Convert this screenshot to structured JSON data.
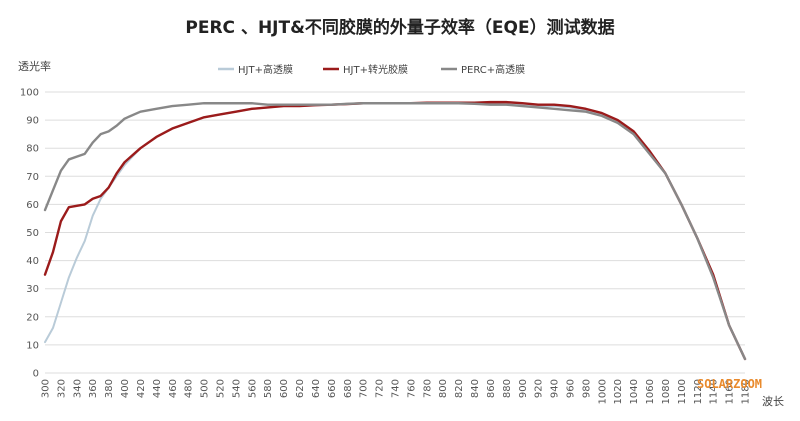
{
  "chart_data": {
    "type": "line",
    "title": "PERC 、HJT&不同胶膜的外量子效率（EQE）测试数据",
    "ylabel": "透光率",
    "xlabel": "波长",
    "ylim": [
      0,
      100
    ],
    "yticks": [
      0,
      10,
      20,
      30,
      40,
      50,
      60,
      70,
      80,
      90,
      100
    ],
    "xlim": [
      300,
      1180
    ],
    "xticks": [
      "300",
      "320",
      "340",
      "360",
      "380",
      "400",
      "420",
      "440",
      "460",
      "480",
      "500",
      "520",
      "540",
      "560",
      "580",
      "600",
      "620",
      "640",
      "660",
      "680",
      "700",
      "720",
      "740",
      "760",
      "780",
      "800",
      "820",
      "840",
      "860",
      "880",
      "900",
      "920",
      "940",
      "960",
      "980",
      "1000",
      "1020",
      "1040",
      "1060",
      "1080",
      "1100",
      "1120",
      "1140",
      "1160",
      "1180"
    ],
    "grid": true,
    "legend_position": "top-center",
    "series": [
      {
        "name": "HJT+高透膜",
        "color": "#b9cbd8",
        "x": [
          300,
          310,
          320,
          330,
          340,
          350,
          360,
          370,
          380,
          390,
          400,
          420,
          440,
          460,
          480,
          500,
          520,
          540,
          560,
          580,
          600,
          620,
          640,
          660,
          680,
          700,
          720,
          740,
          760,
          780,
          800,
          820,
          840,
          860,
          880,
          900,
          920,
          940,
          960,
          980,
          1000,
          1020,
          1040,
          1060,
          1080,
          1100,
          1120,
          1140,
          1160,
          1180
        ],
        "y": [
          11,
          16,
          25,
          34,
          41,
          47,
          56,
          62,
          66,
          70,
          74,
          80,
          84,
          87,
          89,
          91,
          92,
          93,
          94,
          94.5,
          95,
          95,
          95.3,
          95.5,
          95.7,
          96,
          96,
          96,
          96,
          96,
          96,
          96,
          96,
          96,
          95.5,
          95.5,
          95,
          95,
          94.5,
          93.5,
          92,
          90,
          86,
          79,
          71,
          60,
          48,
          35,
          17,
          5
        ]
      },
      {
        "name": "HJT+转光胶膜",
        "color": "#9b1b1b",
        "x": [
          300,
          310,
          320,
          330,
          340,
          350,
          360,
          370,
          380,
          390,
          400,
          420,
          440,
          460,
          480,
          500,
          520,
          540,
          560,
          580,
          600,
          620,
          640,
          660,
          680,
          700,
          720,
          740,
          760,
          780,
          800,
          820,
          840,
          860,
          880,
          900,
          920,
          940,
          960,
          980,
          1000,
          1020,
          1040,
          1060,
          1080,
          1100,
          1120,
          1140,
          1160,
          1180
        ],
        "y": [
          35,
          43,
          54,
          59,
          59.5,
          60,
          62,
          63,
          66,
          71,
          75,
          80,
          84,
          87,
          89,
          91,
          92,
          93,
          94,
          94.5,
          95,
          95,
          95.3,
          95.5,
          95.7,
          96,
          96,
          96,
          96,
          96.2,
          96.2,
          96.2,
          96.2,
          96.4,
          96.4,
          96,
          95.5,
          95.5,
          95,
          94,
          92.5,
          90,
          86,
          79,
          71,
          60,
          48,
          35,
          17,
          5
        ]
      },
      {
        "name": "PERC+高透膜",
        "color": "#888888",
        "x": [
          300,
          310,
          320,
          330,
          340,
          350,
          360,
          370,
          380,
          390,
          400,
          420,
          440,
          460,
          480,
          500,
          520,
          540,
          560,
          580,
          600,
          620,
          640,
          660,
          680,
          700,
          720,
          740,
          760,
          780,
          800,
          820,
          840,
          860,
          880,
          900,
          920,
          940,
          960,
          980,
          1000,
          1020,
          1040,
          1060,
          1080,
          1100,
          1120,
          1140,
          1160,
          1180
        ],
        "y": [
          58,
          65,
          72,
          76,
          77,
          78,
          82,
          85,
          86,
          88,
          90.5,
          93,
          94,
          95,
          95.5,
          96,
          96,
          96,
          96,
          95.5,
          95.5,
          95.5,
          95.5,
          95.5,
          95.8,
          96,
          96,
          96,
          96,
          96,
          96,
          96,
          95.8,
          95.5,
          95.5,
          95,
          94.5,
          94,
          93.5,
          93,
          91.5,
          89,
          85,
          78,
          71,
          60,
          48,
          34,
          17,
          5
        ]
      }
    ]
  },
  "watermark": "SOLARZOOM"
}
